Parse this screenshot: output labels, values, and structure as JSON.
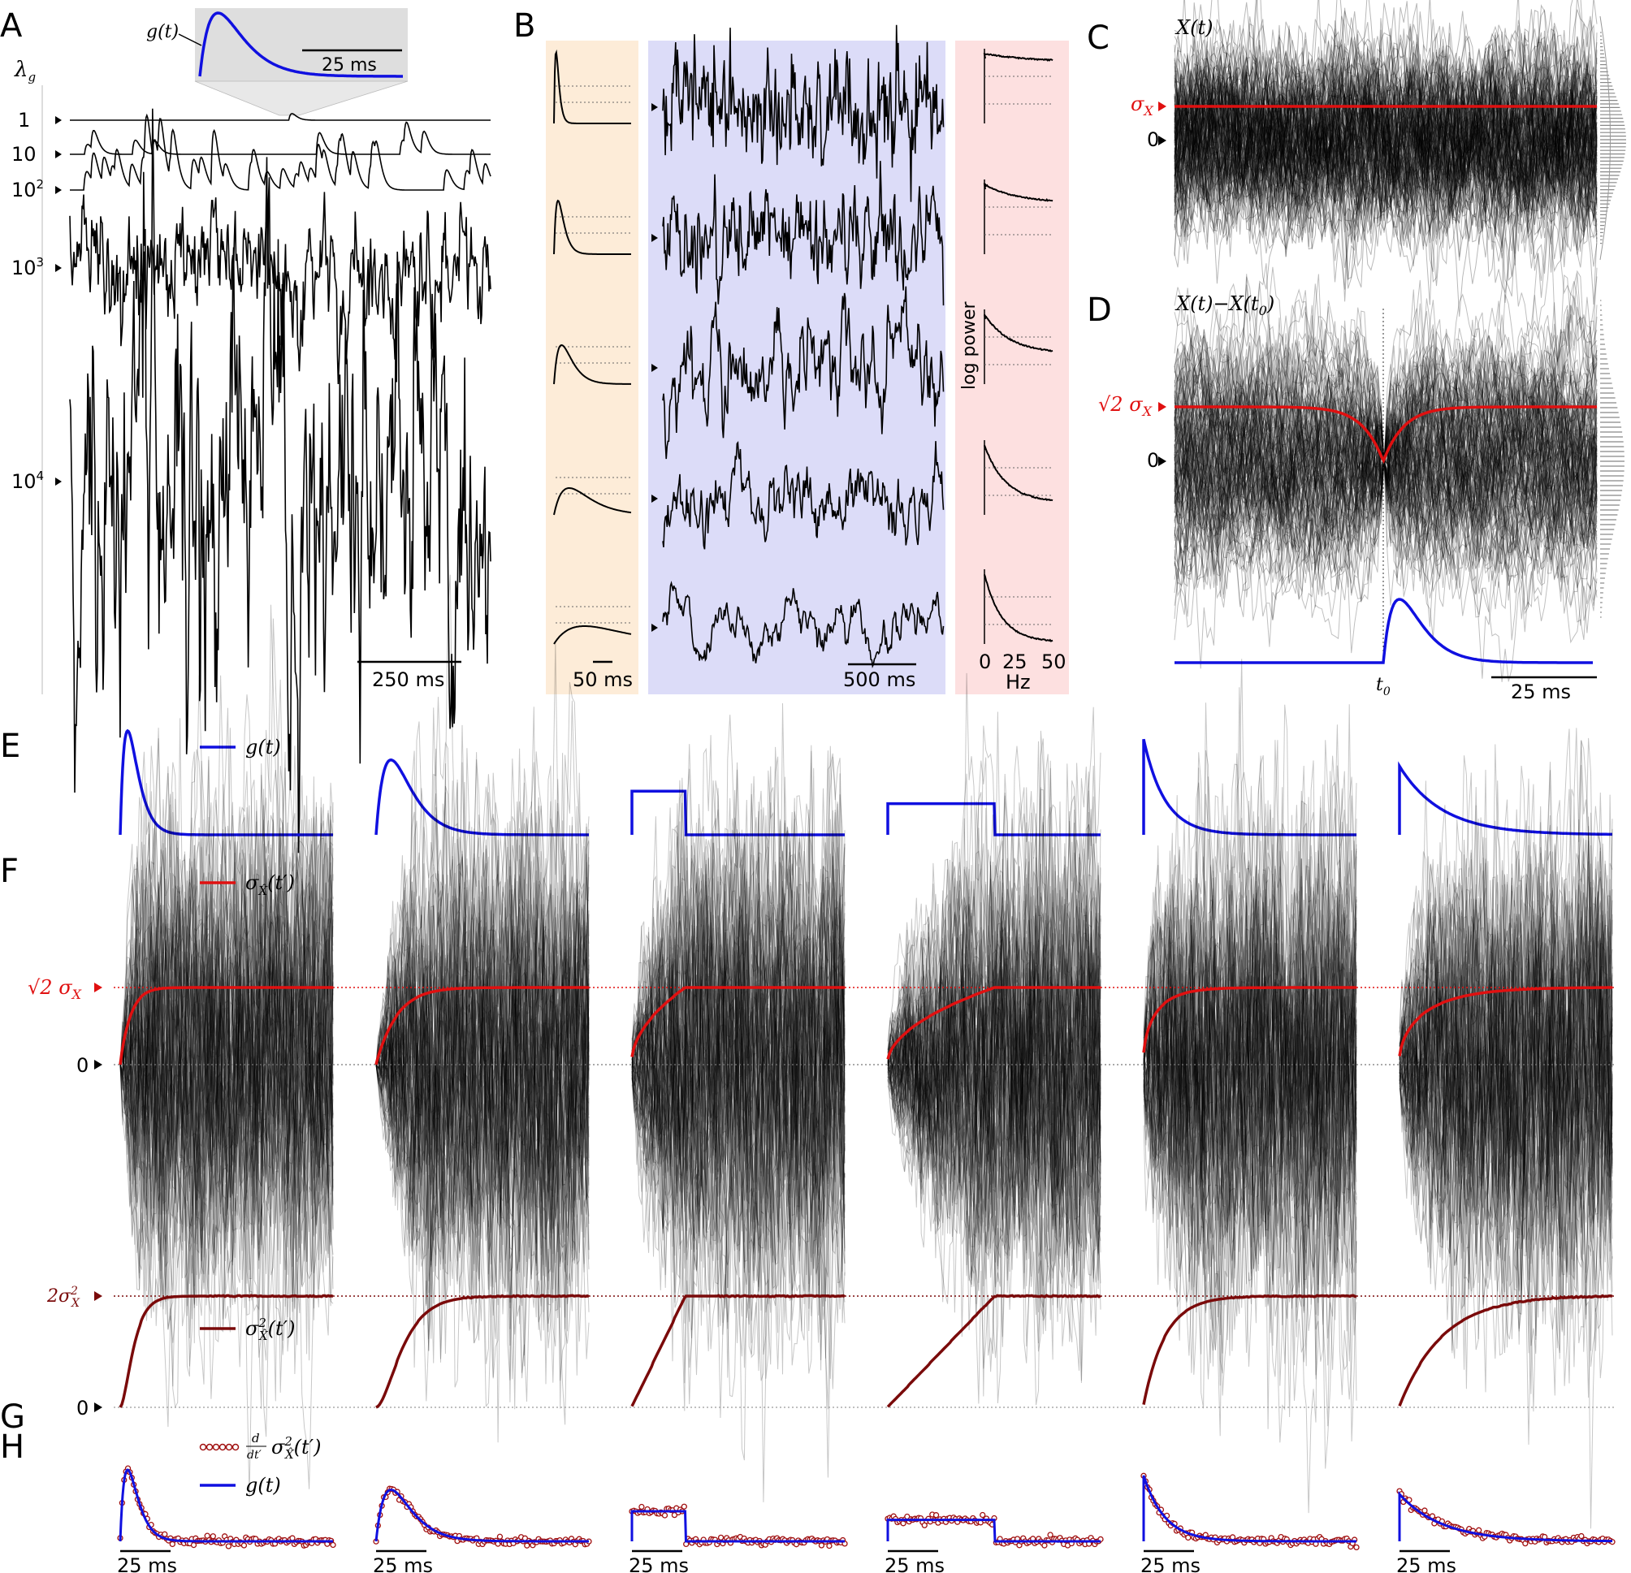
{
  "panels": {
    "A": {
      "letter": "A",
      "lambda_label": "λ",
      "lambda_sub": "g",
      "inset_label": "g(t)",
      "inset_scalebar": "25 ms",
      "scalebar": "250 ms",
      "lambda_values": [
        {
          "base": "1",
          "exp": ""
        },
        {
          "base": "10",
          "exp": ""
        },
        {
          "base": "10",
          "exp": "2"
        },
        {
          "base": "10",
          "exp": "3"
        },
        {
          "base": "10",
          "exp": "4"
        }
      ]
    },
    "B": {
      "letter": "B",
      "scalebar_kernel": "50 ms",
      "scalebar_trace": "500 ms",
      "spectrum_ylabel": "log power",
      "spectrum_xlabel": "Hz",
      "spectrum_ticks": [
        "0",
        "25",
        "50"
      ]
    },
    "C": {
      "letter": "C",
      "title": "X(t)",
      "sigma_label": "σ",
      "sigma_sub": "X",
      "zero_label": "0"
    },
    "D": {
      "letter": "D",
      "title": "X(t)−X(t",
      "title_sub": "0",
      "title_end": ")",
      "sigma_label": "√2 σ",
      "sigma_sub": "X",
      "zero_label": "0",
      "t0_label": "t",
      "t0_sub": "0",
      "scalebar": "25 ms"
    },
    "E": {
      "letter": "E",
      "legend": "g(t)"
    },
    "F": {
      "letter": "F",
      "legend": "σ",
      "legend_sub": "X̂",
      "legend_end": "(t′)",
      "sqrt2_label": "√2 σ",
      "sqrt2_sub": "X",
      "zero_label": "0"
    },
    "G": {
      "letter": "G",
      "legend": "σ",
      "legend_sup": "2",
      "legend_sub": "X̂",
      "legend_end": "(t′)",
      "top_label": "2σ",
      "top_sup": "2",
      "top_sub": "X",
      "zero_label": "0"
    },
    "H": {
      "letter": "H",
      "legend_circles": "d/dt′ σ²X̂(t′)",
      "legend_circles_num": "d",
      "legend_circles_den": "dt′",
      "legend_circles_rest": "σ",
      "legend_circles_sup": "2",
      "legend_circles_sub": "X̂",
      "legend_circles_end": "(t′)",
      "legend_line": "g(t)",
      "scalebar": "25 ms"
    }
  },
  "colors": {
    "kernel": "#1010e0",
    "sigma": "#e01010",
    "variance": "#7a0a0a",
    "traces": "#000000",
    "panelB_kernel_bg": "#fdecd8",
    "panelB_trace_bg": "#dcdcf8",
    "panelB_spectrum_bg": "#fde0e0",
    "inset_bg": "#dedede"
  },
  "chart_data": [
    {
      "type": "line",
      "panel": "A",
      "description_values": "shot-noise traces for increasing event rate",
      "series": [
        {
          "name": "1"
        },
        {
          "name": "10"
        },
        {
          "name": "10^2"
        },
        {
          "name": "10^3"
        },
        {
          "name": "10^4"
        }
      ]
    },
    {
      "type": "line",
      "panel": "E",
      "kernels": [
        "alpha-fast",
        "alpha-slow",
        "box-short",
        "box-long",
        "exp-fast",
        "exp-slow"
      ]
    },
    {
      "type": "line",
      "panel": "G",
      "ylim": [
        0,
        2
      ],
      "yticks": [
        "0",
        "2σ²X"
      ]
    }
  ]
}
